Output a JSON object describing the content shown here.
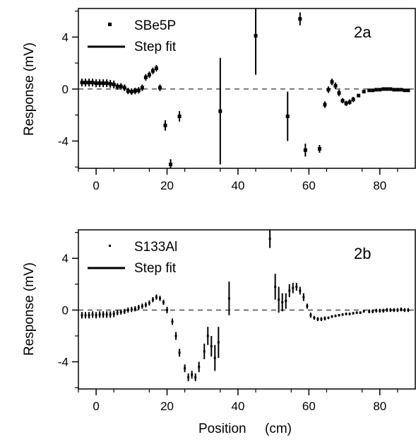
{
  "chart_data": [
    {
      "panel": "2a",
      "type": "scatter",
      "ylabel": "Response  (mV)",
      "xlim": [
        -5,
        90
      ],
      "ylim": [
        -6.1,
        6.2
      ],
      "xticks": [
        0,
        20,
        40,
        60,
        80
      ],
      "yticks": [
        4,
        0,
        -4
      ],
      "ytick_labels": [
        "4",
        "0",
        "-4"
      ],
      "legend": [
        {
          "label": "SBe5P",
          "marker": "point"
        },
        {
          "label": "Step fit",
          "marker": "line"
        }
      ],
      "reference_line": {
        "y": 0,
        "style": "dashed"
      },
      "series": [
        {
          "name": "SBe5P",
          "points": [
            [
              -4,
              0.5,
              0.3
            ],
            [
              -3,
              0.5,
              0.3
            ],
            [
              -2,
              0.5,
              0.3
            ],
            [
              -1,
              0.5,
              0.3
            ],
            [
              0,
              0.45,
              0.3
            ],
            [
              1,
              0.45,
              0.3
            ],
            [
              2,
              0.45,
              0.3
            ],
            [
              3,
              0.45,
              0.3
            ],
            [
              4,
              0.4,
              0.3
            ],
            [
              5,
              0.35,
              0.3
            ],
            [
              6,
              0.2,
              0.25
            ],
            [
              7,
              0.2,
              0.25
            ],
            [
              8,
              0.1,
              0.25
            ],
            [
              9,
              -0.15,
              0.25
            ],
            [
              10,
              -0.2,
              0.25
            ],
            [
              11,
              -0.15,
              0.25
            ],
            [
              12,
              -0.1,
              0.25
            ],
            [
              13,
              0.1,
              0.25
            ],
            [
              14,
              0.9,
              0.25
            ],
            [
              15,
              1.1,
              0.25
            ],
            [
              16,
              1.4,
              0.25
            ],
            [
              17,
              1.6,
              0.25
            ],
            [
              18,
              0.1,
              0.25
            ],
            [
              19.5,
              -2.8,
              0.4
            ],
            [
              21,
              -5.8,
              0.4
            ],
            [
              23.5,
              -2.1,
              0.4
            ],
            [
              35,
              -1.7,
              4.1
            ],
            [
              45,
              4.1,
              3.0
            ],
            [
              54,
              -2.1,
              1.9
            ],
            [
              57.5,
              5.4,
              0.5
            ],
            [
              59,
              -4.7,
              0.5
            ],
            [
              63,
              -4.6,
              0.3
            ],
            [
              64.5,
              -1.2,
              0.25
            ],
            [
              65.5,
              -0.05,
              0.25
            ],
            [
              66.5,
              0.55,
              0.25
            ],
            [
              67.5,
              0.25,
              0.25
            ],
            [
              68.5,
              -0.3,
              0.25
            ],
            [
              69.5,
              -0.9,
              0.2
            ],
            [
              70.5,
              -1.1,
              0.2
            ],
            [
              71.5,
              -1.0,
              0.2
            ],
            [
              72.5,
              -0.8,
              0.2
            ],
            [
              74,
              -0.5,
              0.1
            ],
            [
              75.5,
              -0.2,
              0.1
            ],
            [
              77,
              -0.1,
              0.1
            ],
            [
              78,
              -0.1,
              0.1
            ],
            [
              79,
              -0.05,
              0.1
            ],
            [
              80,
              -0.05,
              0.1
            ],
            [
              81,
              0.0,
              0.1
            ],
            [
              82,
              0.0,
              0.1
            ],
            [
              83,
              0.0,
              0.1
            ],
            [
              84,
              -0.05,
              0.1
            ],
            [
              85,
              -0.05,
              0.1
            ],
            [
              86,
              -0.05,
              0.1
            ],
            [
              87,
              -0.1,
              0.1
            ],
            [
              88,
              -0.1,
              0.1
            ]
          ]
        }
      ]
    },
    {
      "panel": "2b",
      "type": "scatter",
      "xlabel": "Position     (cm)",
      "ylabel": "Response  (mV)",
      "xlim": [
        -5,
        90
      ],
      "ylim": [
        -6.1,
        6.2
      ],
      "xticks": [
        0,
        20,
        40,
        60,
        80
      ],
      "yticks": [
        4,
        0,
        -4
      ],
      "ytick_labels": [
        "4",
        "0",
        "-4"
      ],
      "legend": [
        {
          "label": "S133Al",
          "marker": "point"
        },
        {
          "label": "Step fit",
          "marker": "line"
        }
      ],
      "reference_line": {
        "y": 0,
        "style": "dashed"
      },
      "series": [
        {
          "name": "S133Al",
          "points": [
            [
              -4,
              -0.4,
              0.25
            ],
            [
              -3,
              -0.4,
              0.25
            ],
            [
              -2,
              -0.4,
              0.25
            ],
            [
              -1,
              -0.35,
              0.25
            ],
            [
              0,
              -0.4,
              0.25
            ],
            [
              1,
              -0.35,
              0.25
            ],
            [
              2,
              -0.35,
              0.25
            ],
            [
              3,
              -0.35,
              0.25
            ],
            [
              4,
              -0.35,
              0.25
            ],
            [
              5,
              -0.3,
              0.25
            ],
            [
              6,
              -0.2,
              0.2
            ],
            [
              7,
              -0.15,
              0.2
            ],
            [
              8,
              -0.1,
              0.2
            ],
            [
              9,
              0.0,
              0.2
            ],
            [
              10,
              0.05,
              0.2
            ],
            [
              11,
              0.1,
              0.2
            ],
            [
              12,
              0.2,
              0.2
            ],
            [
              13,
              0.3,
              0.2
            ],
            [
              14,
              0.4,
              0.2
            ],
            [
              15,
              0.55,
              0.2
            ],
            [
              16,
              0.8,
              0.2
            ],
            [
              17,
              1.0,
              0.2
            ],
            [
              18,
              0.9,
              0.2
            ],
            [
              19,
              0.6,
              0.2
            ],
            [
              20,
              0.0,
              0.25
            ],
            [
              21.5,
              -0.9,
              0.25
            ],
            [
              22.5,
              -2.0,
              0.3
            ],
            [
              23.5,
              -3.3,
              0.3
            ],
            [
              25,
              -4.5,
              0.3
            ],
            [
              26,
              -5.2,
              0.3
            ],
            [
              27,
              -5.0,
              0.3
            ],
            [
              28,
              -5.2,
              0.3
            ],
            [
              29,
              -4.4,
              0.4
            ],
            [
              30.5,
              -3.2,
              0.6
            ],
            [
              31.5,
              -2.0,
              0.7
            ],
            [
              32.5,
              -2.8,
              0.8
            ],
            [
              33.5,
              -3.7,
              1.0
            ],
            [
              34.5,
              -2.5,
              1.2
            ],
            [
              37.5,
              0.9,
              1.3
            ],
            [
              49,
              5.5,
              0.7
            ],
            [
              50.5,
              1.8,
              1.0
            ],
            [
              51.5,
              0.8,
              1.0
            ],
            [
              52.5,
              0.6,
              0.7
            ],
            [
              53.5,
              0.7,
              0.6
            ],
            [
              54.5,
              1.5,
              0.5
            ],
            [
              55.5,
              1.7,
              0.4
            ],
            [
              56.5,
              1.8,
              0.3
            ],
            [
              57.5,
              1.5,
              0.3
            ],
            [
              58.5,
              1.0,
              0.3
            ],
            [
              59.5,
              0.3,
              0.2
            ],
            [
              60.5,
              -0.4,
              0.2
            ],
            [
              61.5,
              -0.6,
              0.15
            ],
            [
              62.5,
              -0.7,
              0.15
            ],
            [
              63.5,
              -0.7,
              0.15
            ],
            [
              64.5,
              -0.65,
              0.15
            ],
            [
              65.5,
              -0.6,
              0.1
            ],
            [
              66.5,
              -0.5,
              0.1
            ],
            [
              67.5,
              -0.45,
              0.1
            ],
            [
              68.5,
              -0.4,
              0.1
            ],
            [
              69.5,
              -0.35,
              0.1
            ],
            [
              70.5,
              -0.3,
              0.1
            ],
            [
              71.5,
              -0.3,
              0.1
            ],
            [
              72.5,
              -0.25,
              0.1
            ],
            [
              73.5,
              -0.2,
              0.1
            ],
            [
              74.5,
              -0.2,
              0.1
            ],
            [
              75.5,
              -0.1,
              0.1
            ],
            [
              77,
              -0.1,
              0.15
            ],
            [
              78,
              -0.1,
              0.15
            ],
            [
              79,
              -0.05,
              0.15
            ],
            [
              80,
              -0.05,
              0.15
            ],
            [
              81,
              -0.05,
              0.15
            ],
            [
              82,
              0.0,
              0.15
            ],
            [
              83,
              0.0,
              0.15
            ],
            [
              84,
              0.0,
              0.15
            ],
            [
              85,
              0.0,
              0.15
            ],
            [
              86,
              0.05,
              0.15
            ],
            [
              87,
              0.0,
              0.15
            ],
            [
              88,
              0.0,
              0.15
            ]
          ]
        }
      ]
    }
  ]
}
